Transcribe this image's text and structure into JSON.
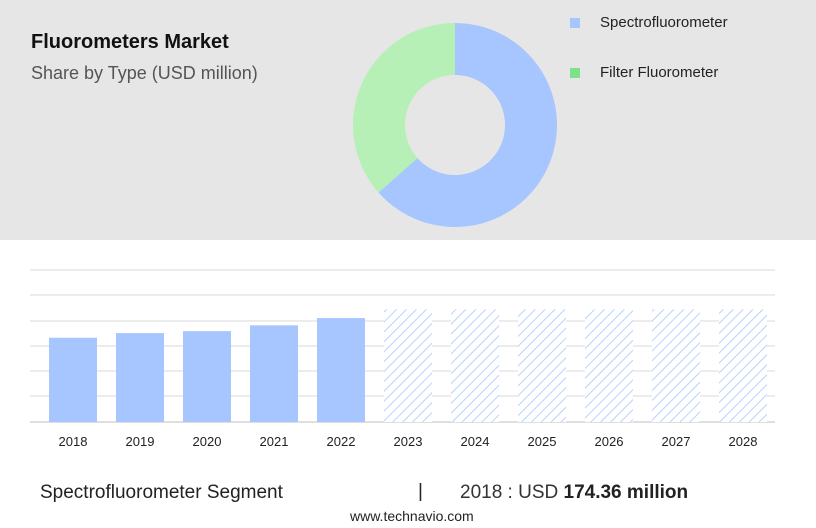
{
  "header": {
    "title": "Fluorometers Market",
    "subtitle": "Share by Type (USD million)"
  },
  "legend": [
    {
      "label": "Spectrofluorometer",
      "color": "#a7c6ff"
    },
    {
      "label": "Filter Fluorometer",
      "color": "#7fe08a"
    }
  ],
  "chart_data": [
    {
      "type": "pie",
      "subtype": "donut",
      "categories": [
        "Spectrofluorometer",
        "Filter Fluorometer"
      ],
      "values": [
        63.5,
        36.5
      ],
      "colors": [
        "#a7c6ff",
        "#b6f0b6"
      ]
    },
    {
      "type": "bar",
      "categories": [
        "2018",
        "2019",
        "2020",
        "2021",
        "2022",
        "2023",
        "2024",
        "2025",
        "2026",
        "2027",
        "2028"
      ],
      "values": [
        174.36,
        184,
        188,
        200,
        215,
        233,
        233,
        233,
        233,
        233,
        233
      ],
      "forecast_from": "2023",
      "bar_color": "#a7c6ff",
      "forecast_style": "hatched",
      "grid": true,
      "ylim": [
        0,
        300
      ]
    }
  ],
  "footer": {
    "segment_label": "Spectrofluorometer Segment",
    "divider": "|",
    "value_prefix": "2018 : USD ",
    "value_bold": "174.36 million"
  },
  "source": "www.technavio.com"
}
